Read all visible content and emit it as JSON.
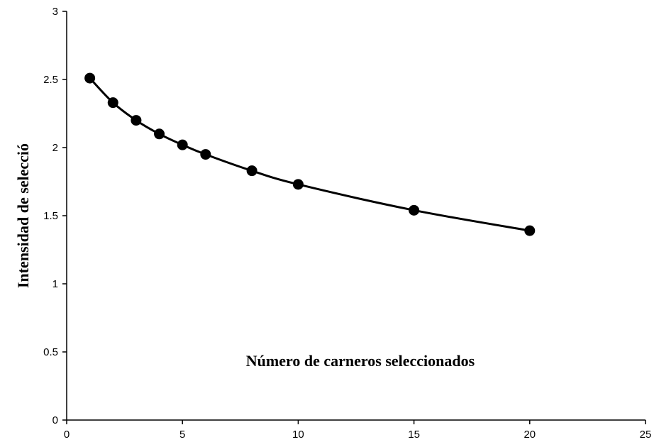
{
  "chart_data": {
    "type": "line",
    "title": "",
    "xlabel": "Número de carneros seleccionados",
    "ylabel": "Intensidad de selecció",
    "xlim": [
      0,
      25
    ],
    "ylim": [
      0,
      3
    ],
    "xticks": [
      0,
      5,
      10,
      15,
      20,
      25
    ],
    "yticks": [
      0,
      0.5,
      1,
      1.5,
      2,
      2.5,
      3
    ],
    "xtick_labels": [
      "0",
      "5",
      "10",
      "15",
      "20",
      "25"
    ],
    "ytick_labels": [
      "0",
      "0.5",
      "1",
      "1.5",
      "2",
      "2.5",
      "3"
    ],
    "grid": false,
    "legend": "none",
    "series": [
      {
        "x": [
          1,
          2,
          3,
          4,
          5,
          6,
          8,
          10,
          15,
          20
        ],
        "values": [
          2.51,
          2.33,
          2.2,
          2.1,
          2.02,
          1.95,
          1.83,
          1.73,
          1.54,
          1.39
        ],
        "color": "#000000",
        "marker": "circle",
        "smooth": true
      }
    ]
  }
}
